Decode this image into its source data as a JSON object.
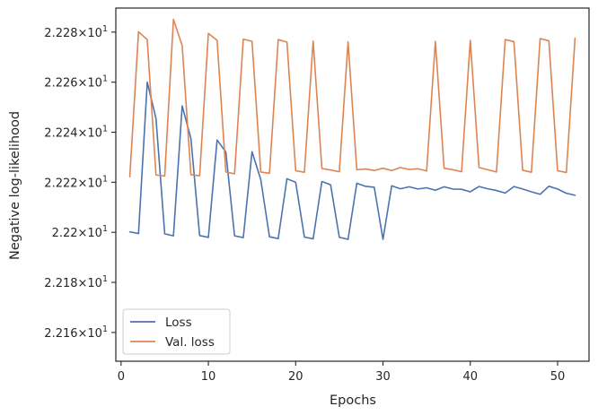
{
  "chart_data": {
    "type": "line",
    "xlabel": "Epochs",
    "ylabel": "Negative log-likelihood",
    "xlim": [
      -0.6,
      53.6
    ],
    "ylim": [
      22.1485,
      22.2896
    ],
    "grid": false,
    "legend_position": "lower-left",
    "x_ticks": [
      0,
      10,
      20,
      30,
      40,
      50
    ],
    "x_tick_labels": [
      "0",
      "10",
      "20",
      "30",
      "40",
      "50"
    ],
    "y_ticks": [
      22.16,
      22.18,
      22.2,
      22.22,
      22.24,
      22.26,
      22.28
    ],
    "y_tick_labels": [
      {
        "mantissa": "2.216",
        "exponent": "1"
      },
      {
        "mantissa": "2.218",
        "exponent": "1"
      },
      {
        "mantissa": "2.22",
        "exponent": "1"
      },
      {
        "mantissa": "2.222",
        "exponent": "1"
      },
      {
        "mantissa": "2.224",
        "exponent": "1"
      },
      {
        "mantissa": "2.226",
        "exponent": "1"
      },
      {
        "mantissa": "2.228",
        "exponent": "1"
      }
    ],
    "x": [
      1,
      2,
      3,
      4,
      5,
      6,
      7,
      8,
      9,
      10,
      11,
      12,
      13,
      14,
      15,
      16,
      17,
      18,
      19,
      20,
      21,
      22,
      23,
      24,
      25,
      26,
      27,
      28,
      29,
      30,
      31,
      32,
      33,
      34,
      35,
      36,
      37,
      38,
      39,
      40,
      41,
      42,
      43,
      44,
      45,
      46,
      47,
      48,
      49,
      50,
      51,
      52
    ],
    "series": [
      {
        "name": "Loss",
        "color": "#4c72b0",
        "values": [
          22.2002,
          22.1995,
          22.26,
          22.2455,
          22.1994,
          22.1986,
          22.2505,
          22.2375,
          22.1987,
          22.198,
          22.2369,
          22.2321,
          22.1986,
          22.1979,
          22.2322,
          22.2211,
          22.1982,
          22.1975,
          22.2214,
          22.22,
          22.1981,
          22.1974,
          22.2203,
          22.219,
          22.198,
          22.1972,
          22.2196,
          22.2184,
          22.218,
          22.1972,
          22.2186,
          22.2174,
          22.2182,
          22.2173,
          22.2178,
          22.2168,
          22.2182,
          22.2173,
          22.2172,
          22.2162,
          22.2183,
          22.2174,
          22.2167,
          22.2157,
          22.2183,
          22.2173,
          22.2162,
          22.2152,
          22.2184,
          22.2173,
          22.2156,
          22.2148
        ]
      },
      {
        "name": "Val. loss",
        "color": "#dd8452",
        "values": [
          22.2222,
          22.2801,
          22.277,
          22.2229,
          22.2225,
          22.2851,
          22.2746,
          22.223,
          22.2226,
          22.2795,
          22.2767,
          22.2241,
          22.2234,
          22.2772,
          22.2763,
          22.2241,
          22.2236,
          22.277,
          22.276,
          22.2246,
          22.224,
          22.2764,
          22.2255,
          22.2249,
          22.2242,
          22.2761,
          22.225,
          22.2253,
          22.2247,
          22.2256,
          22.2247,
          22.2259,
          22.2251,
          22.2254,
          22.2245,
          22.2763,
          22.2256,
          22.225,
          22.2242,
          22.2767,
          22.2259,
          22.225,
          22.2241,
          22.277,
          22.2762,
          22.2248,
          22.224,
          22.2774,
          22.2765,
          22.2246,
          22.2239,
          22.2776
        ]
      }
    ]
  }
}
